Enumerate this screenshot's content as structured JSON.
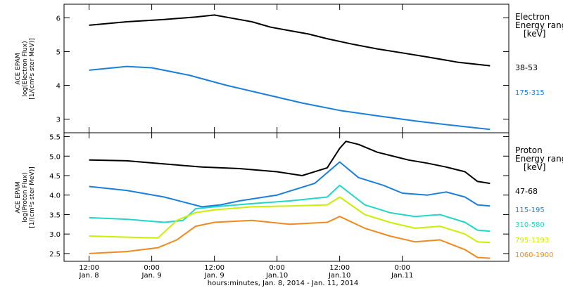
{
  "chart_data": [
    {
      "type": "line",
      "panel": "top",
      "ylabel_lines": [
        "ACE EPAM",
        "log(Electron Flux)",
        "[1/(cm²s ster MeV)]"
      ],
      "ylim": [
        2.6,
        6.4
      ],
      "yticks": [
        3,
        4,
        5,
        6
      ],
      "legend_title_lines": [
        "Electron",
        "Energy ranges",
        "[keV]"
      ],
      "series": [
        {
          "name": "38-53",
          "color": "#000000",
          "x": [
            0.0,
            0.3,
            0.6,
            0.85,
            1.0,
            1.15,
            1.3,
            1.45,
            1.6,
            1.75,
            1.9,
            2.1,
            2.3,
            2.5,
            2.7,
            2.95,
            3.2
          ],
          "y": [
            5.78,
            5.88,
            5.95,
            6.02,
            6.08,
            5.98,
            5.88,
            5.72,
            5.62,
            5.52,
            5.38,
            5.22,
            5.08,
            4.96,
            4.84,
            4.68,
            4.58
          ]
        },
        {
          "name": "175-315",
          "color": "#1a7fdc",
          "x": [
            0.0,
            0.3,
            0.5,
            0.8,
            1.1,
            1.4,
            1.7,
            2.0,
            2.3,
            2.6,
            2.9,
            3.2
          ],
          "y": [
            4.45,
            4.56,
            4.52,
            4.3,
            4.0,
            3.74,
            3.48,
            3.26,
            3.1,
            2.95,
            2.82,
            2.7
          ]
        }
      ]
    },
    {
      "type": "line",
      "panel": "bottom",
      "ylabel_lines": [
        "ACE EPAM",
        "log(Proton Flux)",
        "[1/(cm²s ster MeV)]"
      ],
      "ylim": [
        2.3,
        5.6
      ],
      "yticks": [
        2.5,
        3.0,
        3.5,
        4.0,
        4.5,
        5.0,
        5.5
      ],
      "legend_title_lines": [
        "Proton",
        "Energy ranges",
        "[keV]"
      ],
      "series": [
        {
          "name": "47-68",
          "color": "#000000",
          "x": [
            0.0,
            0.3,
            0.6,
            0.9,
            1.2,
            1.5,
            1.7,
            1.9,
            2.0,
            2.05,
            2.15,
            2.3,
            2.45,
            2.55,
            2.7,
            2.85,
            3.0,
            3.1,
            3.2
          ],
          "y": [
            4.9,
            4.88,
            4.8,
            4.72,
            4.68,
            4.6,
            4.5,
            4.7,
            5.2,
            5.38,
            5.3,
            5.1,
            4.98,
            4.9,
            4.82,
            4.72,
            4.6,
            4.35,
            4.3
          ]
        },
        {
          "name": "115-195",
          "color": "#1a7fdc",
          "x": [
            0.0,
            0.3,
            0.6,
            0.9,
            1.05,
            1.2,
            1.5,
            1.8,
            2.0,
            2.15,
            2.35,
            2.5,
            2.7,
            2.85,
            3.0,
            3.1,
            3.2
          ],
          "y": [
            4.22,
            4.12,
            3.95,
            3.7,
            3.75,
            3.85,
            4.0,
            4.3,
            4.85,
            4.45,
            4.25,
            4.05,
            4.0,
            4.08,
            3.95,
            3.75,
            3.72
          ]
        },
        {
          "name": "310-580",
          "color": "#22d6c8",
          "x": [
            0.0,
            0.3,
            0.6,
            0.75,
            0.85,
            1.0,
            1.3,
            1.6,
            1.9,
            2.0,
            2.2,
            2.4,
            2.6,
            2.8,
            3.0,
            3.1,
            3.2
          ],
          "y": [
            3.42,
            3.38,
            3.3,
            3.35,
            3.65,
            3.7,
            3.78,
            3.85,
            3.95,
            4.25,
            3.75,
            3.55,
            3.45,
            3.5,
            3.3,
            3.1,
            3.07
          ]
        },
        {
          "name": "795-1193",
          "color": "#c8f000",
          "x": [
            0.0,
            0.3,
            0.55,
            0.7,
            0.85,
            1.0,
            1.3,
            1.6,
            1.9,
            2.0,
            2.2,
            2.4,
            2.6,
            2.8,
            3.0,
            3.1,
            3.2
          ],
          "y": [
            2.95,
            2.92,
            2.9,
            3.35,
            3.55,
            3.62,
            3.7,
            3.72,
            3.75,
            3.95,
            3.5,
            3.3,
            3.15,
            3.2,
            3.0,
            2.8,
            2.78
          ]
        },
        {
          "name": "1060-1900",
          "color": "#f08a1e",
          "x": [
            0.0,
            0.3,
            0.55,
            0.7,
            0.85,
            1.0,
            1.3,
            1.6,
            1.9,
            2.0,
            2.2,
            2.4,
            2.6,
            2.8,
            3.0,
            3.1,
            3.2
          ],
          "y": [
            2.5,
            2.55,
            2.65,
            2.85,
            3.2,
            3.3,
            3.35,
            3.25,
            3.3,
            3.45,
            3.15,
            2.95,
            2.8,
            2.85,
            2.6,
            2.4,
            2.38
          ]
        }
      ]
    }
  ],
  "time_axis": {
    "xlim": [
      -0.2,
      3.35
    ],
    "ticks": [
      {
        "x": 0.0,
        "time": "12:00",
        "date": "Jan. 8"
      },
      {
        "x": 0.5,
        "time": "0:00",
        "date": "Jan. 9"
      },
      {
        "x": 1.0,
        "time": "12:00",
        "date": "Jan. 9"
      },
      {
        "x": 1.5,
        "time": "0:00",
        "date": "Jan.10"
      },
      {
        "x": 2.0,
        "time": "12:00",
        "date": "Jan.10"
      },
      {
        "x": 2.5,
        "time": "0:00",
        "date": "Jan.11"
      }
    ],
    "xlabel": "hours:minutes, Jan.  8, 2014 - Jan. 11, 2014"
  }
}
